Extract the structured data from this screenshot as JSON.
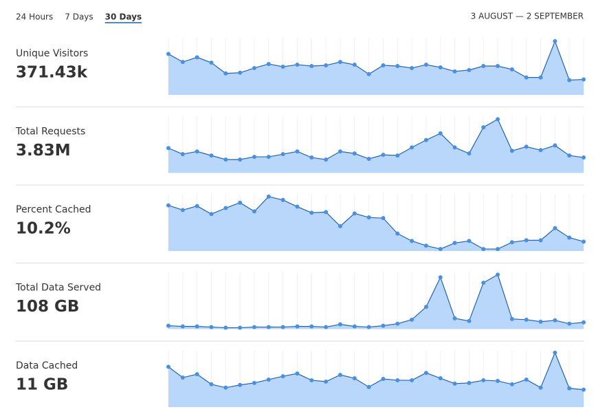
{
  "tabs": {
    "items": [
      "24 Hours",
      "7 Days",
      "30 Days"
    ],
    "active": 2
  },
  "date_range": "3 AUGUST — 2 SEPTEMBER",
  "chart_data": [
    {
      "type": "area",
      "title": "Unique Visitors",
      "subtitle": "371.43k",
      "ylim": [
        0,
        85
      ],
      "grid": true,
      "color": "#4a90e2",
      "line_color": "#2563a8",
      "fill_color": "#b9d6fb",
      "values": [
        61,
        49,
        56,
        48,
        32,
        33,
        40,
        46,
        42,
        45,
        43,
        44,
        49,
        45,
        31,
        44,
        43,
        40,
        45,
        41,
        35,
        37,
        43,
        43,
        38,
        26,
        26,
        80,
        22,
        23
      ]
    },
    {
      "type": "area",
      "title": "Total Requests",
      "subtitle": "3.83M",
      "ylim": [
        0,
        85
      ],
      "grid": true,
      "color": "#4a90e2",
      "line_color": "#2563a8",
      "fill_color": "#b9d6fb",
      "values": [
        37,
        28,
        32,
        26,
        20,
        20,
        24,
        24,
        28,
        32,
        23,
        20,
        32,
        29,
        21,
        27,
        26,
        38,
        49,
        59,
        38,
        29,
        68,
        80,
        33,
        39,
        34,
        41,
        26,
        23
      ]
    },
    {
      "type": "area",
      "title": "Percent Cached",
      "subtitle": "10.2%",
      "ylim": [
        0,
        85
      ],
      "grid": true,
      "color": "#4a90e2",
      "line_color": "#2563a8",
      "fill_color": "#b9d6fb",
      "values": [
        68,
        61,
        67,
        55,
        64,
        72,
        59,
        81,
        76,
        66,
        57,
        58,
        37,
        56,
        50,
        49,
        26,
        15,
        8,
        3,
        12,
        15,
        3,
        3,
        13,
        16,
        16,
        34,
        20,
        14
      ]
    },
    {
      "type": "area",
      "title": "Total Data Served",
      "subtitle": "108 GB",
      "ylim": [
        0,
        85
      ],
      "grid": true,
      "color": "#4a90e2",
      "line_color": "#2563a8",
      "fill_color": "#b9d6fb",
      "values": [
        5,
        4,
        4,
        3,
        2,
        2,
        3,
        3,
        3,
        4,
        4,
        3,
        7,
        4,
        3,
        5,
        8,
        14,
        33,
        77,
        16,
        12,
        69,
        81,
        15,
        14,
        11,
        13,
        8,
        10
      ]
    },
    {
      "type": "area",
      "title": "Data Cached",
      "subtitle": "11 GB",
      "ylim": [
        0,
        85
      ],
      "grid": true,
      "color": "#4a90e2",
      "line_color": "#2563a8",
      "fill_color": "#b9d6fb",
      "values": [
        60,
        44,
        49,
        34,
        29,
        33,
        36,
        41,
        46,
        50,
        40,
        38,
        48,
        43,
        30,
        42,
        40,
        40,
        51,
        43,
        35,
        36,
        40,
        39,
        34,
        41,
        29,
        81,
        28,
        26
      ]
    }
  ]
}
